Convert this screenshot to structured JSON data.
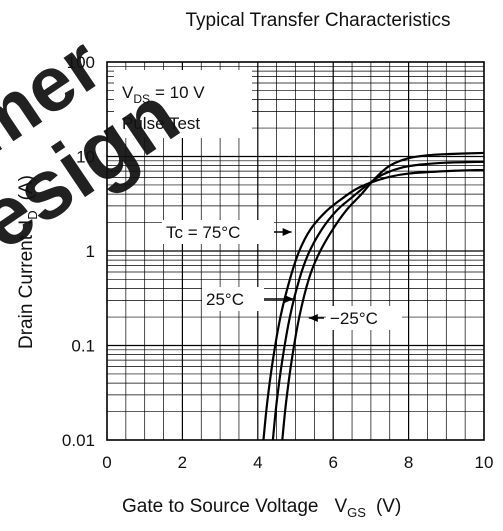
{
  "chart_data": {
    "type": "line",
    "title": "Typical Transfer Characteristics",
    "xlabel": {
      "text": "Gate to Source Voltage",
      "symbol": "V",
      "subscript": "GS",
      "unit": "(V)"
    },
    "ylabel": {
      "text": "Drain Current",
      "symbol": "I",
      "subscript": "D",
      "unit": "(A)"
    },
    "xlim": [
      0,
      10
    ],
    "ylim": [
      0.01,
      100
    ],
    "yscale": "log",
    "grid": true,
    "x_ticks": [
      {
        "value": 0,
        "label": "0"
      },
      {
        "value": 2,
        "label": "2"
      },
      {
        "value": 4,
        "label": "4"
      },
      {
        "value": 6,
        "label": "6"
      },
      {
        "value": 8,
        "label": "8"
      },
      {
        "value": 10,
        "label": "10"
      }
    ],
    "y_ticks": [
      {
        "value": 0.01,
        "label": "0.01"
      },
      {
        "value": 0.1,
        "label": "0.1"
      },
      {
        "value": 1,
        "label": "1"
      },
      {
        "value": 10,
        "label": "10"
      },
      {
        "value": 100,
        "label": "100"
      }
    ],
    "conditions": {
      "vds_symbol": "V",
      "vds_subscript": "DS",
      "vds_value": "= 10 V",
      "pulse": "Pulse Test"
    },
    "series": [
      {
        "name": "Tc = 75°C",
        "x": [
          4.15,
          4.25,
          4.4,
          4.6,
          4.85,
          5.1,
          5.4,
          5.8,
          6.2,
          6.6,
          7.0,
          7.5,
          8.0,
          9.0,
          10.0
        ],
        "y": [
          0.01,
          0.025,
          0.07,
          0.2,
          0.5,
          1.0,
          1.7,
          2.6,
          3.5,
          4.5,
          5.3,
          6.1,
          6.6,
          7.0,
          7.2
        ]
      },
      {
        "name": "25°C",
        "x": [
          4.4,
          4.5,
          4.65,
          4.85,
          5.1,
          5.35,
          5.7,
          6.1,
          6.5,
          6.9,
          7.3,
          7.8,
          8.3,
          9.0,
          10.0
        ],
        "y": [
          0.01,
          0.025,
          0.07,
          0.2,
          0.5,
          0.95,
          1.7,
          2.7,
          3.7,
          5.0,
          6.4,
          7.6,
          8.2,
          8.6,
          8.8
        ]
      },
      {
        "name": "−25°C",
        "x": [
          4.65,
          4.75,
          4.9,
          5.1,
          5.35,
          5.6,
          5.95,
          6.35,
          6.75,
          7.1,
          7.5,
          8.0,
          8.5,
          9.0,
          10.0
        ],
        "y": [
          0.01,
          0.025,
          0.07,
          0.2,
          0.5,
          0.9,
          1.6,
          2.7,
          4.0,
          5.8,
          8.0,
          9.6,
          10.3,
          10.6,
          10.9
        ]
      }
    ],
    "annotations": [
      {
        "text": "Tc = 75°C",
        "series": 0,
        "point": [
          4.95,
          1.0
        ]
      },
      {
        "text": "25°C",
        "series": 1,
        "point": [
          5.0,
          0.3
        ]
      },
      {
        "text": "−25°C",
        "series": 2,
        "point": [
          5.3,
          0.13
        ]
      }
    ]
  },
  "watermark": {
    "lines": [
      "mer",
      "design"
    ],
    "color": "#ee1122"
  }
}
